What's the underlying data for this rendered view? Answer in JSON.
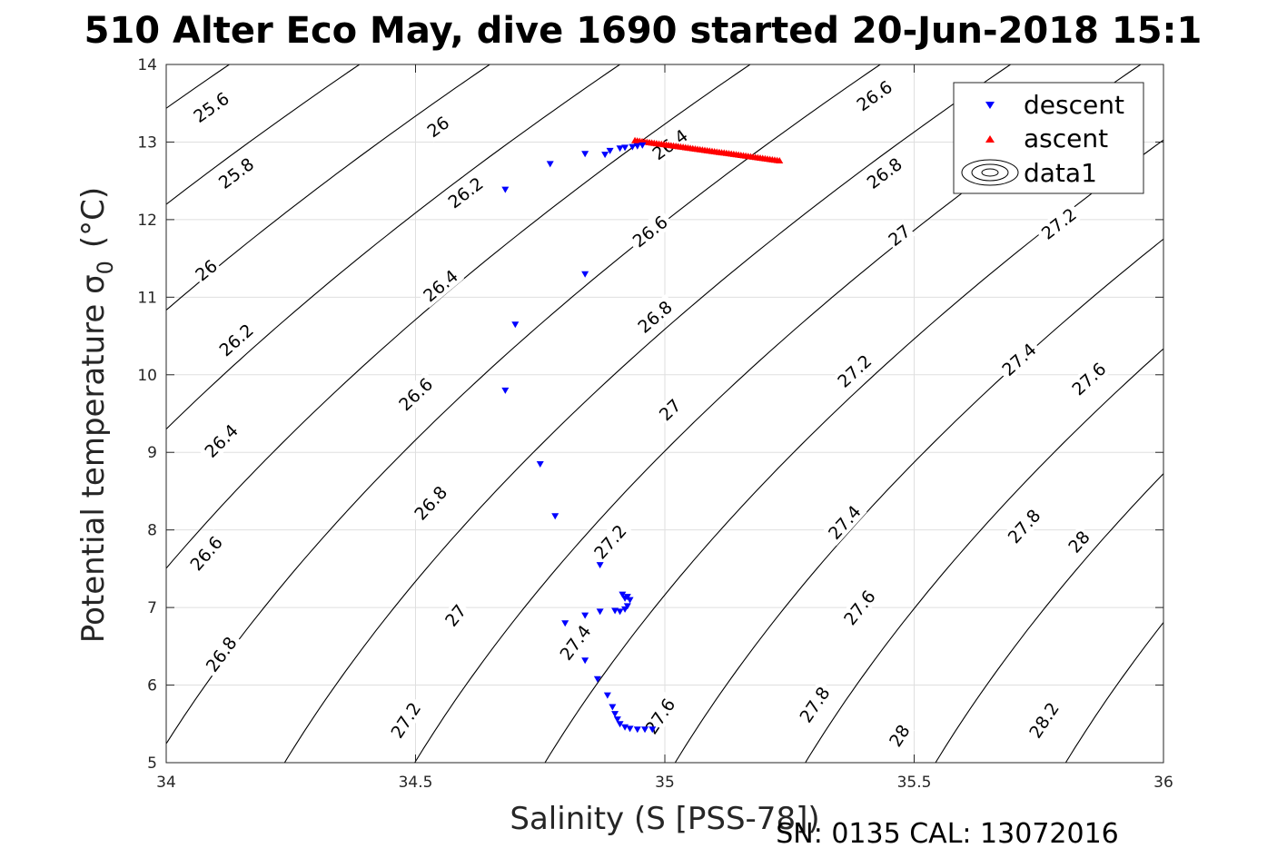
{
  "chart_data": {
    "type": "scatter",
    "title": "510 Alter Eco May, dive 1690 started 20-Jun-2018 15:1",
    "xlabel": "Salinity (S [PSS-78])",
    "ylabel": "Potential temperature σ",
    "ylabel_sub": "0",
    "ylabel_unit": "(°C)",
    "xlim": [
      34,
      36
    ],
    "ylim": [
      5,
      14
    ],
    "xticks": [
      34,
      34.5,
      35,
      35.5,
      36
    ],
    "xtick_labels": [
      "34",
      "34.5",
      "35",
      "35.5",
      "36"
    ],
    "yticks": [
      5,
      6,
      7,
      8,
      9,
      10,
      11,
      12,
      13,
      14
    ],
    "ytick_labels": [
      "5",
      "6",
      "7",
      "8",
      "9",
      "10",
      "11",
      "12",
      "13",
      "14"
    ],
    "grid": true,
    "legend_position": "top-right",
    "legend": [
      "descent",
      "ascent",
      "data1"
    ],
    "footer": "SN: 0135  CAL: 13072016",
    "series": [
      {
        "name": "descent",
        "marker": "triangle-down",
        "color": "#0000ff",
        "points": [
          [
            34.68,
            12.39
          ],
          [
            34.77,
            12.72
          ],
          [
            34.84,
            12.85
          ],
          [
            34.88,
            12.84
          ],
          [
            34.89,
            12.89
          ],
          [
            34.91,
            12.92
          ],
          [
            34.92,
            12.93
          ],
          [
            34.935,
            12.94
          ],
          [
            34.945,
            12.95
          ],
          [
            34.955,
            12.96
          ],
          [
            34.84,
            11.3
          ],
          [
            34.7,
            10.65
          ],
          [
            34.68,
            9.8
          ],
          [
            34.75,
            8.85
          ],
          [
            34.78,
            8.18
          ],
          [
            34.87,
            7.55
          ],
          [
            34.915,
            7.17
          ],
          [
            34.92,
            7.12
          ],
          [
            34.925,
            7.14
          ],
          [
            34.93,
            7.1
          ],
          [
            34.925,
            7.02
          ],
          [
            34.92,
            6.98
          ],
          [
            34.91,
            6.95
          ],
          [
            34.9,
            6.96
          ],
          [
            34.87,
            6.95
          ],
          [
            34.84,
            6.9
          ],
          [
            34.8,
            6.8
          ],
          [
            34.84,
            6.32
          ],
          [
            34.865,
            6.08
          ],
          [
            34.885,
            5.87
          ],
          [
            34.895,
            5.72
          ],
          [
            34.9,
            5.63
          ],
          [
            34.905,
            5.56
          ],
          [
            34.91,
            5.5
          ],
          [
            34.92,
            5.46
          ],
          [
            34.93,
            5.44
          ],
          [
            34.945,
            5.43
          ],
          [
            34.96,
            5.43
          ],
          [
            34.975,
            5.43
          ]
        ]
      },
      {
        "name": "ascent",
        "marker": "triangle-up",
        "color": "#ff0000",
        "line_from": [
          34.94,
          13.02
        ],
        "line_to": [
          35.23,
          12.76
        ]
      }
    ],
    "contours": {
      "name": "data1",
      "type": "sigma0-isopycnals",
      "levels": [
        25.6,
        25.8,
        26,
        26.2,
        26.4,
        26.6,
        26.8,
        27,
        27.2,
        27.4,
        27.6,
        27.8,
        28,
        28.2
      ],
      "labels": [
        {
          "text": "25.6",
          "x": 34.09,
          "y": 13.45
        },
        {
          "text": "25.8",
          "x": 34.14,
          "y": 12.6
        },
        {
          "text": "26",
          "x": 34.08,
          "y": 11.35
        },
        {
          "text": "26.2",
          "x": 34.14,
          "y": 10.45
        },
        {
          "text": "26.4",
          "x": 34.11,
          "y": 9.15
        },
        {
          "text": "26.6",
          "x": 34.08,
          "y": 7.7
        },
        {
          "text": "26.8",
          "x": 34.11,
          "y": 6.4
        },
        {
          "text": "26",
          "x": 34.545,
          "y": 13.2
        },
        {
          "text": "26.2",
          "x": 34.6,
          "y": 12.35
        },
        {
          "text": "26.4",
          "x": 34.55,
          "y": 11.15
        },
        {
          "text": "26.6",
          "x": 34.5,
          "y": 9.75
        },
        {
          "text": "26.8",
          "x": 34.53,
          "y": 8.35
        },
        {
          "text": "27",
          "x": 34.58,
          "y": 6.9
        },
        {
          "text": "27.2",
          "x": 34.48,
          "y": 5.55
        },
        {
          "text": "26.4",
          "x": 35.01,
          "y": 12.97
        },
        {
          "text": "26.6",
          "x": 34.97,
          "y": 11.85
        },
        {
          "text": "26.8",
          "x": 34.98,
          "y": 10.75
        },
        {
          "text": "27",
          "x": 35.01,
          "y": 9.55
        },
        {
          "text": "27.2",
          "x": 34.89,
          "y": 7.85
        },
        {
          "text": "27.4",
          "x": 34.82,
          "y": 6.55
        },
        {
          "text": "27.6",
          "x": 34.99,
          "y": 5.6
        },
        {
          "text": "26.6",
          "x": 35.42,
          "y": 13.6
        },
        {
          "text": "26.8",
          "x": 35.44,
          "y": 12.6
        },
        {
          "text": "27",
          "x": 35.47,
          "y": 11.8
        },
        {
          "text": "27.2",
          "x": 35.38,
          "y": 10.05
        },
        {
          "text": "27.4",
          "x": 35.36,
          "y": 8.1
        },
        {
          "text": "27.6",
          "x": 35.39,
          "y": 7.0
        },
        {
          "text": "27.8",
          "x": 35.3,
          "y": 5.75
        },
        {
          "text": "28",
          "x": 35.47,
          "y": 5.35
        },
        {
          "text": "27.2",
          "x": 35.79,
          "y": 11.95
        },
        {
          "text": "27.4",
          "x": 35.71,
          "y": 10.2
        },
        {
          "text": "27.6",
          "x": 35.85,
          "y": 9.95
        },
        {
          "text": "27.8",
          "x": 35.72,
          "y": 8.05
        },
        {
          "text": "28",
          "x": 35.83,
          "y": 7.85
        },
        {
          "text": "28.2",
          "x": 35.76,
          "y": 5.55
        }
      ]
    }
  }
}
